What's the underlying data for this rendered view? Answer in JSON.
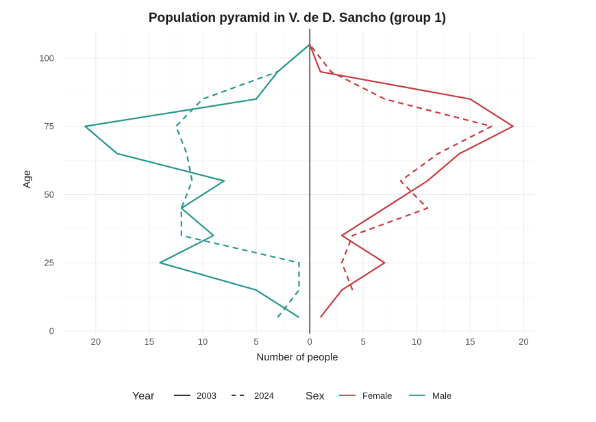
{
  "chart_data": {
    "type": "line",
    "title": "Population pyramid in V. de D. Sancho (group 1)",
    "xlabel": "Number of people",
    "ylabel": "Age",
    "xlim": [
      -23,
      21
    ],
    "ylim": [
      -1,
      110
    ],
    "x_ticks": [
      -20,
      -15,
      -10,
      -5,
      0,
      5,
      10,
      15,
      20
    ],
    "x_tick_labels": [
      "20",
      "15",
      "10",
      "5",
      "0",
      "5",
      "10",
      "15",
      "20"
    ],
    "y_ticks": [
      0,
      25,
      50,
      75,
      100
    ],
    "y_tick_labels": [
      "0",
      "25",
      "50",
      "75",
      "100"
    ],
    "grid": true,
    "legend_position": "bottom",
    "legend": {
      "year_title": "Year",
      "year_items": [
        {
          "label": "2003",
          "dash": "solid"
        },
        {
          "label": "2024",
          "dash": "dashed"
        }
      ],
      "sex_title": "Sex",
      "sex_items": [
        {
          "label": "Female",
          "color": "#c8383d"
        },
        {
          "label": "Male",
          "color": "#23968c"
        }
      ]
    },
    "series": [
      {
        "sex": "Male",
        "year": "2003",
        "color": "#23968c",
        "dash": "solid",
        "points": [
          [
            -1,
            5
          ],
          [
            -5,
            15
          ],
          [
            -14,
            25
          ],
          [
            -9,
            35
          ],
          [
            -12,
            45
          ],
          [
            -8,
            55
          ],
          [
            -18,
            65
          ],
          [
            -21,
            75
          ],
          [
            -5,
            85
          ],
          [
            -3,
            95
          ],
          [
            0,
            105
          ]
        ]
      },
      {
        "sex": "Male",
        "year": "2024",
        "color": "#23968c",
        "dash": "dashed",
        "points": [
          [
            -3,
            5
          ],
          [
            -1,
            15
          ],
          [
            -1,
            25
          ],
          [
            -12,
            35
          ],
          [
            -12,
            45
          ],
          [
            -11,
            55
          ],
          [
            -11.5,
            65
          ],
          [
            -12.5,
            75
          ],
          [
            -10,
            85
          ],
          [
            -3,
            95
          ],
          [
            0,
            105
          ]
        ]
      },
      {
        "sex": "Female",
        "year": "2003",
        "color": "#c8383d",
        "dash": "solid",
        "points": [
          [
            1,
            5
          ],
          [
            3,
            15
          ],
          [
            7,
            25
          ],
          [
            3,
            35
          ],
          [
            7,
            45
          ],
          [
            11,
            55
          ],
          [
            14,
            65
          ],
          [
            19,
            75
          ],
          [
            15,
            85
          ],
          [
            1,
            95
          ],
          [
            0,
            105
          ]
        ]
      },
      {
        "sex": "Female",
        "year": "2024",
        "color": "#c8383d",
        "dash": "dashed",
        "points": [
          [
            4,
            15
          ],
          [
            3,
            25
          ],
          [
            4,
            35
          ],
          [
            11,
            45
          ],
          [
            8.5,
            55
          ],
          [
            12,
            65
          ],
          [
            17,
            75
          ],
          [
            7,
            85
          ],
          [
            2,
            95
          ],
          [
            0,
            105
          ]
        ]
      }
    ]
  }
}
